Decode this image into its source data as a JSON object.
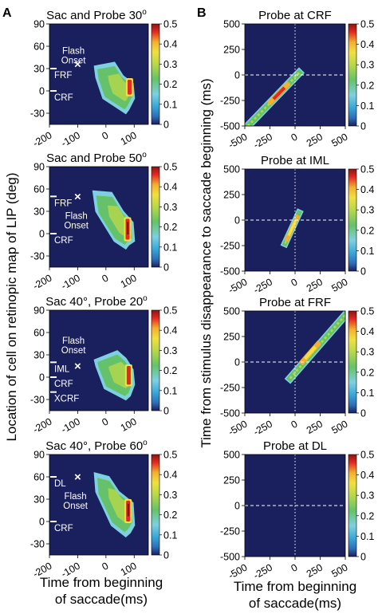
{
  "panel_labels": {
    "a": "A",
    "b": "B"
  },
  "colors": {
    "background": "#1a1f5e",
    "colormap": [
      "#1a1f5e",
      "#3aa7d8",
      "#7ed0e0",
      "#66c26a",
      "#d6e040",
      "#f3b030",
      "#e22a24",
      "#8b1510"
    ]
  },
  "axes_labels": {
    "a_ylabel": "Location of cell on retinopic map of LIP (deg)",
    "a_xlabel_line1": "Time from beginning",
    "a_xlabel_line2": "of saccade(ms)",
    "b_ylabel": "Time from stimulus disappearance to saccade beginning (ms)",
    "b_xlabel_line1": "Time from beginning",
    "b_xlabel_line2": "of saccade(ms)"
  },
  "chart_data": [
    {
      "panel": "A1",
      "type": "heatmap",
      "title": "Sac and Probe 30",
      "title_superscript": "o",
      "xlim": [
        -200,
        150
      ],
      "ylim": [
        -45,
        90
      ],
      "xticks": [
        -200,
        -100,
        0,
        100
      ],
      "yticks": [
        90,
        60,
        30,
        0,
        -30
      ],
      "clim": [
        0,
        0.5
      ],
      "colorbar_ticks": [
        "0.5",
        "0.4",
        "0.3",
        "0.2",
        "0.1",
        "0"
      ],
      "marker_x": -100,
      "marker_y": 36,
      "marker_label": "×",
      "annotation": "Flash Onset",
      "annotation_pos": [
        -115,
        50
      ],
      "ylabels_on_axis": [
        {
          "text": "FRF",
          "y": 30
        },
        {
          "text": "CRF",
          "y": 0
        }
      ],
      "blob": {
        "outline": [
          [
            -40,
            33
          ],
          [
            30,
            38
          ],
          [
            60,
            20
          ],
          [
            95,
            10
          ],
          [
            100,
            -10
          ],
          [
            80,
            -25
          ],
          [
            70,
            -30
          ],
          [
            -10,
            -10
          ],
          [
            -35,
            18
          ]
        ],
        "ridge_x": 85,
        "ridge_y": [
          -5,
          15
        ],
        "peak": 0.45
      }
    },
    {
      "panel": "A2",
      "type": "heatmap",
      "title": "Sac and Probe 50",
      "title_superscript": "o",
      "xlim": [
        -200,
        150
      ],
      "ylim": [
        -45,
        90
      ],
      "xticks": [
        -200,
        -100,
        0,
        100
      ],
      "yticks": [
        90,
        60,
        30,
        0,
        -30
      ],
      "clim": [
        0,
        0.5
      ],
      "colorbar_ticks": [
        "0.5",
        "0.4",
        "0.3",
        "0.2",
        "0.1",
        "0"
      ],
      "marker_x": -100,
      "marker_y": 50,
      "marker_label": "×",
      "annotation": "Flash Onset",
      "annotation_pos": [
        -105,
        20
      ],
      "ylabels_on_axis": [
        {
          "text": "FRF",
          "y": 50
        },
        {
          "text": "CRF",
          "y": 0
        }
      ],
      "blob": {
        "outline": [
          [
            -45,
            57
          ],
          [
            20,
            55
          ],
          [
            60,
            30
          ],
          [
            95,
            15
          ],
          [
            100,
            -10
          ],
          [
            80,
            -15
          ],
          [
            70,
            -20
          ],
          [
            30,
            -10
          ],
          [
            -35,
            30
          ]
        ],
        "ridge_x": 78,
        "ridge_y": [
          -8,
          20
        ],
        "peak": 0.47
      }
    },
    {
      "panel": "A3",
      "type": "heatmap",
      "title": "Sac 40°, Probe 20",
      "title_superscript": "o",
      "xlim": [
        -200,
        150
      ],
      "ylim": [
        -45,
        90
      ],
      "xticks": [
        -200,
        -100,
        0,
        100
      ],
      "yticks": [
        90,
        60,
        30,
        0,
        -30
      ],
      "clim": [
        0,
        0.5
      ],
      "colorbar_ticks": [
        "0.5",
        "0.4",
        "0.3",
        "0.2",
        "0.1",
        "0"
      ],
      "marker_x": -100,
      "marker_y": 15,
      "marker_label": "×",
      "annotation": "Flash Onset",
      "annotation_pos": [
        -115,
        45
      ],
      "ylabels_on_axis": [
        {
          "text": "IML",
          "y": 20
        },
        {
          "text": "CRF",
          "y": 0
        },
        {
          "text": "XCRF",
          "y": -20
        }
      ],
      "blob": {
        "outline": [
          [
            -40,
            23
          ],
          [
            40,
            35
          ],
          [
            70,
            25
          ],
          [
            95,
            10
          ],
          [
            100,
            -10
          ],
          [
            85,
            -25
          ],
          [
            70,
            -30
          ],
          [
            -5,
            -15
          ],
          [
            -35,
            15
          ]
        ],
        "ridge_x": 82,
        "ridge_y": [
          -10,
          15
        ],
        "peak": 0.44
      }
    },
    {
      "panel": "A4",
      "type": "heatmap",
      "title": "Sac 40°, Probe 60",
      "title_superscript": "o",
      "xlim": [
        -200,
        150
      ],
      "ylim": [
        -45,
        90
      ],
      "xticks": [
        -200,
        -100,
        0,
        100
      ],
      "yticks": [
        90,
        60,
        30,
        0,
        -30
      ],
      "clim": [
        0,
        0.5
      ],
      "colorbar_ticks": [
        "0.5",
        "0.4",
        "0.3",
        "0.2",
        "0.1",
        "0"
      ],
      "marker_x": -100,
      "marker_y": 60,
      "marker_label": "×",
      "annotation": "Flash Onset",
      "annotation_pos": [
        -108,
        30
      ],
      "ylabels_on_axis": [
        {
          "text": "DL",
          "y": 60
        },
        {
          "text": "CRF",
          "y": 0
        }
      ],
      "blob": {
        "outline": [
          [
            -40,
            65
          ],
          [
            10,
            60
          ],
          [
            45,
            40
          ],
          [
            95,
            25
          ],
          [
            100,
            -5
          ],
          [
            85,
            -15
          ],
          [
            70,
            -20
          ],
          [
            20,
            -5
          ],
          [
            -35,
            40
          ]
        ],
        "ridge_x": 80,
        "ridge_y": [
          0,
          28
        ],
        "peak": 0.48
      }
    },
    {
      "panel": "B1",
      "type": "heatmap",
      "title": "Probe at CRF",
      "xlim": [
        -500,
        500
      ],
      "ylim": [
        -500,
        500
      ],
      "xticks": [
        -500,
        -250,
        0,
        250,
        500
      ],
      "yticks": [
        500,
        250,
        0,
        -250,
        -500
      ],
      "clim": [
        0,
        0.5
      ],
      "colorbar_ticks": [
        "0.5",
        "0.4",
        "0.3",
        "0.2",
        "0.1",
        "0"
      ],
      "band": {
        "from": [
          -470,
          -500
        ],
        "to": [
          40,
          20
        ],
        "width": 55,
        "peak_at": [
          -160,
          -180
        ],
        "peak": 0.46
      }
    },
    {
      "panel": "B2",
      "type": "heatmap",
      "title": "Probe at IML",
      "xlim": [
        -500,
        500
      ],
      "ylim": [
        -500,
        500
      ],
      "xticks": [
        -500,
        -250,
        0,
        250,
        500
      ],
      "yticks": [
        500,
        250,
        0,
        -250,
        -500
      ],
      "clim": [
        0,
        0.5
      ],
      "colorbar_ticks": [
        "0.5",
        "0.4",
        "0.3",
        "0.2",
        "0.1",
        "0"
      ],
      "band": {
        "from": [
          -100,
          -230
        ],
        "to": [
          40,
          70
        ],
        "width": 45,
        "peak_at": [
          -30,
          -80
        ],
        "peak": 0.33
      }
    },
    {
      "panel": "B3",
      "type": "heatmap",
      "title": "Probe at FRF",
      "xlim": [
        -500,
        500
      ],
      "ylim": [
        -500,
        500
      ],
      "xticks": [
        -500,
        -250,
        0,
        250,
        500
      ],
      "yticks": [
        500,
        250,
        0,
        -250,
        -500
      ],
      "clim": [
        0,
        0.5
      ],
      "colorbar_ticks": [
        "0.5",
        "0.4",
        "0.3",
        "0.2",
        "0.1",
        "0"
      ],
      "band": {
        "from": [
          -50,
          -160
        ],
        "to": [
          500,
          460
        ],
        "width": 55,
        "peak_at": [
          150,
          90
        ],
        "peak": 0.32
      }
    },
    {
      "panel": "B4",
      "type": "heatmap",
      "title": "Probe at DL",
      "xlim": [
        -500,
        500
      ],
      "ylim": [
        -500,
        500
      ],
      "xticks": [
        -500,
        -250,
        0,
        250,
        500
      ],
      "yticks": [
        500,
        250,
        0,
        -250,
        -500
      ],
      "clim": [
        0,
        0.5
      ],
      "colorbar_ticks": [
        "0.5",
        "0.4",
        "0.3",
        "0.2",
        "0.1",
        "0"
      ],
      "band": null
    }
  ]
}
